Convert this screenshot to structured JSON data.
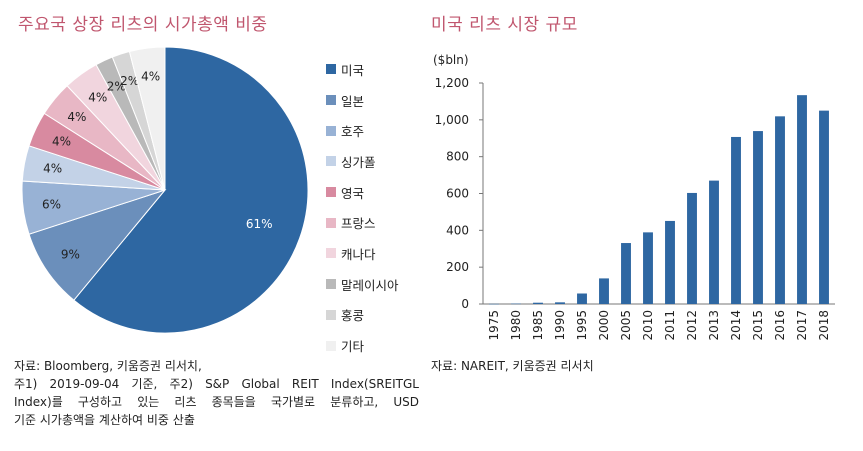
{
  "titles": {
    "left": "주요국 상장 리츠의 시가총액 비중",
    "right": "미국 리츠 시장 규모"
  },
  "colors": {
    "title": "#c0566e",
    "bar": "#2e67a2",
    "pie": [
      "#2e67a2",
      "#6b8fbb",
      "#98b2d5",
      "#c3d2e7",
      "#d88aa0",
      "#e8b7c5",
      "#f1d5de",
      "#b9b9b9",
      "#d6d6d6",
      "#f0f0f0"
    ]
  },
  "chart_data": [
    {
      "type": "pie",
      "title": "주요국 상장 리츠의 시가총액 비중",
      "categories": [
        "미국",
        "일본",
        "호주",
        "싱가폴",
        "영국",
        "프랑스",
        "캐나다",
        "말레이시아",
        "홍콩",
        "기타"
      ],
      "values": [
        61,
        9,
        6,
        4,
        4,
        4,
        4,
        2,
        2,
        4
      ],
      "labels": [
        "61%",
        "9%",
        "6%",
        "4%",
        "4%",
        "4%",
        "4%",
        "2%",
        "2%",
        "4%"
      ],
      "legend": "right"
    },
    {
      "type": "bar",
      "title": "미국 리츠 시장 규모",
      "unit_label": "($bln)",
      "categories": [
        "1975",
        "1980",
        "1985",
        "1990",
        "1995",
        "2000",
        "2005",
        "2010",
        "2011",
        "2012",
        "2013",
        "2014",
        "2015",
        "2016",
        "2017",
        "2018"
      ],
      "values": [
        1,
        2,
        7,
        9,
        57,
        139,
        331,
        389,
        451,
        603,
        670,
        907,
        939,
        1019,
        1134,
        1050
      ],
      "ylim": [
        0,
        1200
      ],
      "yticks": [
        0,
        200,
        400,
        600,
        800,
        1000,
        1200
      ],
      "ytick_labels": [
        "0",
        "200",
        "400",
        "600",
        "800",
        "1,000",
        "1,200"
      ],
      "grid": false
    }
  ],
  "notes": {
    "left": [
      "자료: Bloomberg, 키움증권 리서치,",
      "주1) 2019-09-04 기준, 주2) S&P Global REIT Index(SREITGL",
      "Index)를 구성하고 있는 리츠 종목들을 국가별로 분류하고, USD",
      "기준 시가총액을 계산하여 비중 산출"
    ],
    "right": "자료: NAREIT, 키움증권 리서치"
  }
}
